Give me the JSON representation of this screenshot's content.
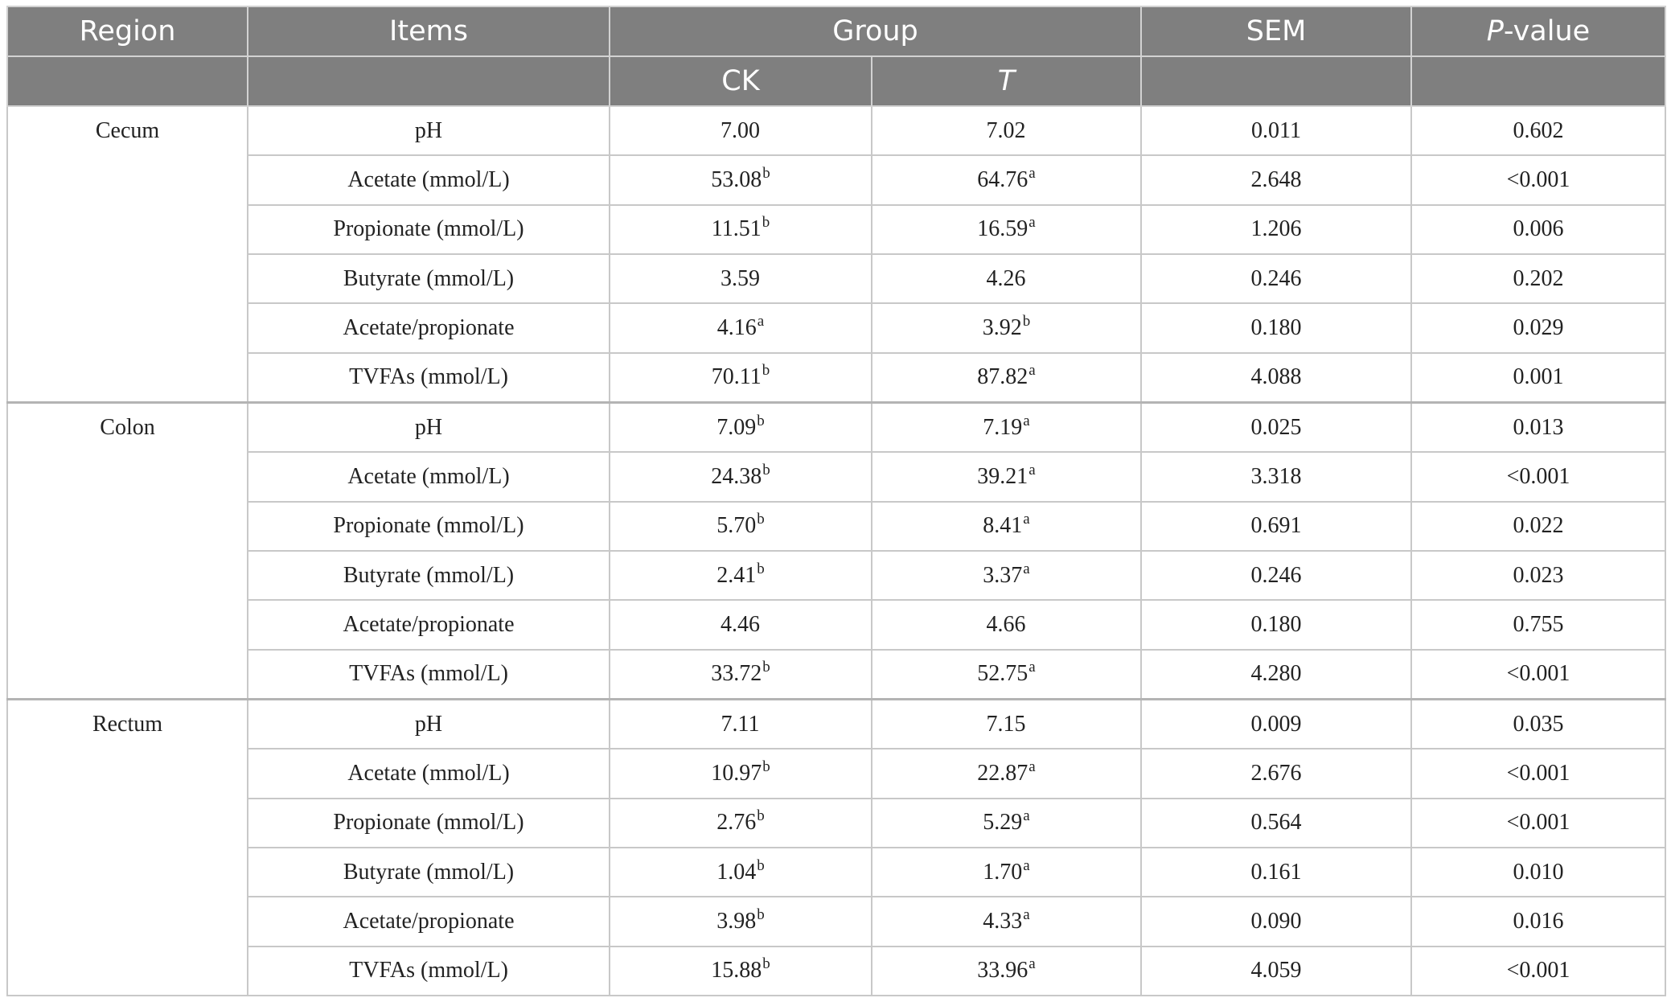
{
  "header": {
    "region": "Region",
    "items": "Items",
    "group": "Group",
    "sem": "SEM",
    "pvalue_italic": "P",
    "pvalue_rest": "-value",
    "ck": "CK",
    "t": "T"
  },
  "groups": [
    {
      "region": "Cecum",
      "rows": [
        {
          "item": "pH",
          "ck": "7.00",
          "ck_sup": "",
          "t": "7.02",
          "t_sup": "",
          "sem": "0.011",
          "p": "0.602"
        },
        {
          "item": "Acetate (mmol/L)",
          "ck": "53.08",
          "ck_sup": "b",
          "t": "64.76",
          "t_sup": "a",
          "sem": "2.648",
          "p": "<0.001"
        },
        {
          "item": "Propionate (mmol/L)",
          "ck": "11.51",
          "ck_sup": "b",
          "t": "16.59",
          "t_sup": "a",
          "sem": "1.206",
          "p": "0.006"
        },
        {
          "item": "Butyrate (mmol/L)",
          "ck": "3.59",
          "ck_sup": "",
          "t": "4.26",
          "t_sup": "",
          "sem": "0.246",
          "p": "0.202"
        },
        {
          "item": "Acetate/propionate",
          "ck": "4.16",
          "ck_sup": "a",
          "t": "3.92",
          "t_sup": "b",
          "sem": "0.180",
          "p": "0.029"
        },
        {
          "item": "TVFAs (mmol/L)",
          "ck": "70.11",
          "ck_sup": "b",
          "t": "87.82",
          "t_sup": "a",
          "sem": "4.088",
          "p": "0.001"
        }
      ]
    },
    {
      "region": "Colon",
      "rows": [
        {
          "item": "pH",
          "ck": "7.09",
          "ck_sup": "b",
          "t": "7.19",
          "t_sup": "a",
          "sem": "0.025",
          "p": "0.013"
        },
        {
          "item": "Acetate (mmol/L)",
          "ck": "24.38",
          "ck_sup": "b",
          "t": "39.21",
          "t_sup": "a",
          "sem": "3.318",
          "p": "<0.001"
        },
        {
          "item": "Propionate (mmol/L)",
          "ck": "5.70",
          "ck_sup": "b",
          "t": "8.41",
          "t_sup": "a",
          "sem": "0.691",
          "p": "0.022"
        },
        {
          "item": "Butyrate (mmol/L)",
          "ck": "2.41",
          "ck_sup": "b",
          "t": "3.37",
          "t_sup": "a",
          "sem": "0.246",
          "p": "0.023"
        },
        {
          "item": "Acetate/propionate",
          "ck": "4.46",
          "ck_sup": "",
          "t": "4.66",
          "t_sup": "",
          "sem": "0.180",
          "p": "0.755"
        },
        {
          "item": "TVFAs (mmol/L)",
          "ck": "33.72",
          "ck_sup": "b",
          "t": "52.75",
          "t_sup": "a",
          "sem": "4.280",
          "p": "<0.001"
        }
      ]
    },
    {
      "region": "Rectum",
      "rows": [
        {
          "item": "pH",
          "ck": "7.11",
          "ck_sup": "",
          "t": "7.15",
          "t_sup": "",
          "sem": "0.009",
          "p": "0.035"
        },
        {
          "item": "Acetate (mmol/L)",
          "ck": "10.97",
          "ck_sup": "b",
          "t": "22.87",
          "t_sup": "a",
          "sem": "2.676",
          "p": "<0.001"
        },
        {
          "item": "Propionate (mmol/L)",
          "ck": "2.76",
          "ck_sup": "b",
          "t": "5.29",
          "t_sup": "a",
          "sem": "0.564",
          "p": "<0.001"
        },
        {
          "item": "Butyrate (mmol/L)",
          "ck": "1.04",
          "ck_sup": "b",
          "t": "1.70",
          "t_sup": "a",
          "sem": "0.161",
          "p": "0.010"
        },
        {
          "item": "Acetate/propionate",
          "ck": "3.98",
          "ck_sup": "b",
          "t": "4.33",
          "t_sup": "a",
          "sem": "0.090",
          "p": "0.016"
        },
        {
          "item": "TVFAs (mmol/L)",
          "ck": "15.88",
          "ck_sup": "b",
          "t": "33.96",
          "t_sup": "a",
          "sem": "4.059",
          "p": "<0.001"
        }
      ]
    }
  ]
}
